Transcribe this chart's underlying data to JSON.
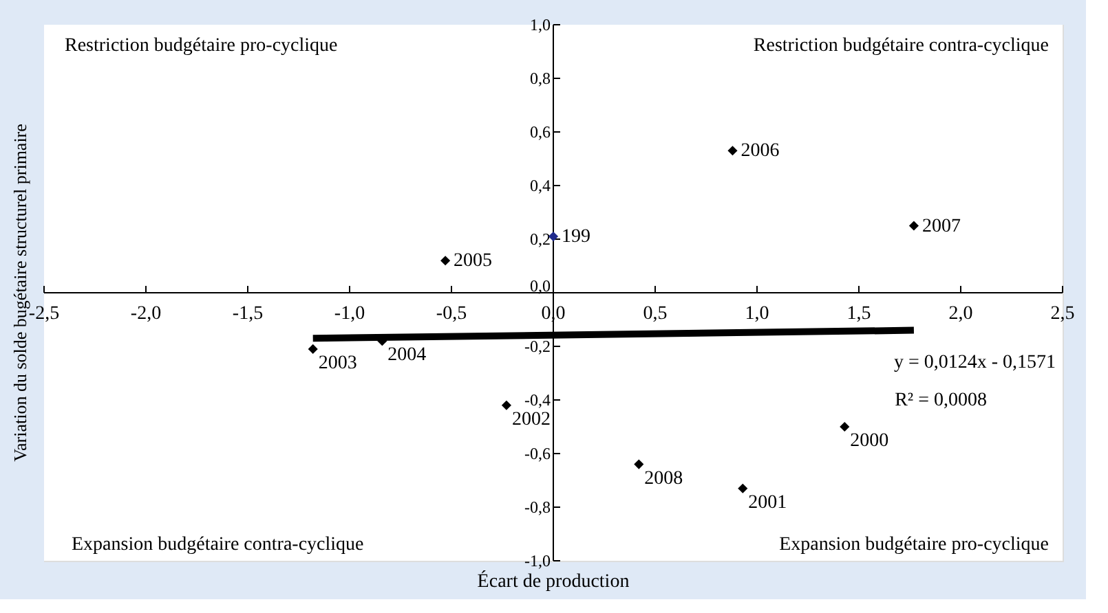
{
  "chart_data": {
    "type": "scatter",
    "xlabel": "Écart de production",
    "ylabel": "Variation du solde bugétaire structurel primaire",
    "xlim": [
      -2.5,
      2.5
    ],
    "ylim": [
      -1.0,
      1.0
    ],
    "xticks": [
      {
        "value": -2.5,
        "label": "-2,5"
      },
      {
        "value": -2.0,
        "label": "-2,0"
      },
      {
        "value": -1.5,
        "label": "-1,5"
      },
      {
        "value": -1.0,
        "label": "-1,0"
      },
      {
        "value": -0.5,
        "label": "-0,5"
      },
      {
        "value": 0,
        "label": "0,0"
      },
      {
        "value": 0.5,
        "label": "0,5"
      },
      {
        "value": 1.0,
        "label": "1,0"
      },
      {
        "value": 1.5,
        "label": "1,5"
      },
      {
        "value": 2.0,
        "label": "2,0"
      },
      {
        "value": 2.5,
        "label": "2,5"
      }
    ],
    "yticks": [
      {
        "value": -1.0,
        "label": "-1,0"
      },
      {
        "value": -0.8,
        "label": "-0,8"
      },
      {
        "value": -0.6,
        "label": "-0,6"
      },
      {
        "value": -0.4,
        "label": "-0,4"
      },
      {
        "value": -0.2,
        "label": "-0,2"
      },
      {
        "value": 0,
        "label": "0,0"
      },
      {
        "value": 0.2,
        "label": "0,2"
      },
      {
        "value": 0.4,
        "label": "0,4"
      },
      {
        "value": 0.6,
        "label": "0,6"
      },
      {
        "value": 0.8,
        "label": "0,8"
      },
      {
        "value": 1.0,
        "label": "1,0"
      }
    ],
    "marker": "diamond",
    "grid": false,
    "series": [
      {
        "x": [
          -0.53,
          0.88,
          1.77,
          0.0,
          -1.18,
          -0.84,
          -0.23,
          0.42,
          0.93,
          1.43
        ],
        "values": [
          0.12,
          0.53,
          0.25,
          0.21,
          -0.21,
          -0.18,
          -0.42,
          -0.64,
          -0.73,
          -0.5
        ],
        "colors": [
          "#000000",
          "#000000",
          "#000000",
          "#1f2a8c",
          "#000000",
          "#000000",
          "#000000",
          "#000000",
          "#000000",
          "#000000"
        ]
      },
      {
        "type": "line",
        "color": "#000000",
        "x": [
          -1.18,
          1.77
        ],
        "values": [
          -0.17,
          -0.14
        ],
        "line_style": "solid",
        "marker": "none"
      }
    ],
    "annotations": [
      "Restriction budgétaire pro-cyclique",
      "Restriction budgétaire contra-cyclique",
      "Expansion budgétaire contra-cyclique",
      "Expansion budgétaire pro-cyclique",
      "y = 0,0124x - 0,1571",
      "R² = 0,0008",
      {
        "text": "2005",
        "x": -0.53,
        "y": 0.12
      },
      {
        "text": "2006",
        "x": 0.88,
        "y": 0.53
      },
      {
        "text": "2007",
        "x": 1.77,
        "y": 0.25
      },
      {
        "text": "199",
        "x": 0.0,
        "y": 0.21
      },
      {
        "text": "2003",
        "x": -1.18,
        "y": -0.21
      },
      {
        "text": "2004",
        "x": -0.84,
        "y": -0.18
      },
      {
        "text": "2002",
        "x": -0.23,
        "y": -0.42
      },
      {
        "text": "2008",
        "x": 0.42,
        "y": -0.64
      },
      {
        "text": "2001",
        "x": 0.93,
        "y": -0.73
      },
      {
        "text": "2000",
        "x": 1.43,
        "y": -0.5
      }
    ]
  }
}
